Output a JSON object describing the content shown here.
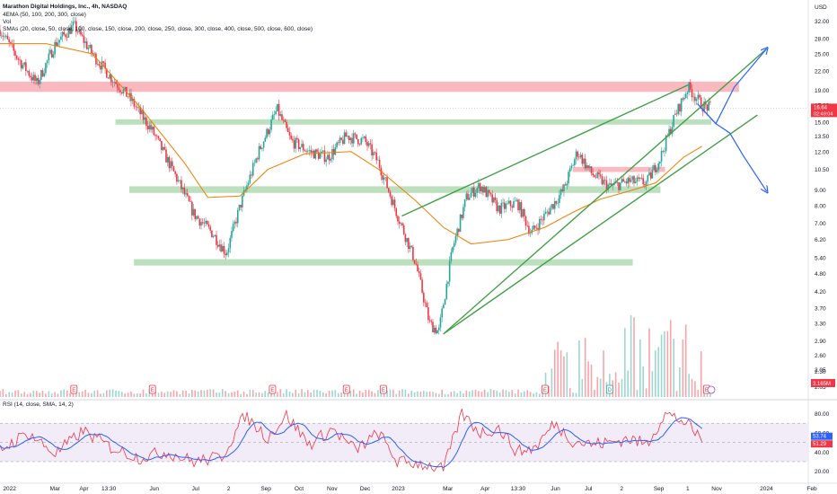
{
  "legend": {
    "title": "Marathon Digital Holdings, Inc., 4h, NASDAQ",
    "ema": "4EMA (50, 100, 200, 300, close)",
    "vol": "Vol",
    "smas": "SMAs (20, close, 50, close, 100, close, 150, close, 200, close, 250, close, 300, close, 400, close, 500, close, 600, close)",
    "rsi": "RSI (14, close, SMA, 14, 2)"
  },
  "currency": "USD",
  "price_badge": {
    "price": "16.64",
    "countdown": "02:49:04",
    "color": "#f23645"
  },
  "volume_badge": {
    "value": "3.165M",
    "color": "#f23645"
  },
  "rsi_badges": [
    {
      "value": "53.74",
      "color": "#2962ff"
    },
    {
      "value": "51.29",
      "color": "#f23645"
    }
  ],
  "colors": {
    "up": "#26a69a",
    "down": "#f23645",
    "ma": "#f57c00",
    "support": "#a5d6a7",
    "resistance": "#f8a1a8",
    "trend": "#43a047",
    "projection": "#2962ff",
    "rsi": "#f23645",
    "rsi_ma": "#2962ff",
    "rsi_band": "#ede7f6"
  },
  "chart_data": [
    {
      "type": "candlestick",
      "title": "Marathon Digital Holdings, Inc., 4h, NASDAQ",
      "x_axis_labels": [
        "2022",
        "Mar",
        "Apr",
        "13:30",
        "Jun",
        "Jul",
        "2",
        "Sep",
        "Oct",
        "Nov",
        "Dec",
        "2023",
        "Mar",
        "Apr",
        "13:30",
        "Jun",
        "Jul",
        "2",
        "Sep",
        "1",
        "Nov",
        "2024",
        "Feb"
      ],
      "y_axis_labels": [
        "32.00",
        "28.00",
        "25.00",
        "22.00",
        "19.00",
        "17.00",
        "15.00",
        "13.50",
        "12.00",
        "10.50",
        "9.00",
        "8.00",
        "7.00",
        "6.20",
        "5.40",
        "4.80",
        "4.20",
        "3.70",
        "3.30",
        "2.90",
        "2.60",
        "2.30",
        "2.05"
      ],
      "y_scale": "log",
      "ylim": [
        1.9,
        36
      ],
      "approx_price_path": [
        [
          0,
          30
        ],
        [
          4,
          24
        ],
        [
          8,
          20
        ],
        [
          12,
          27
        ],
        [
          16,
          31
        ],
        [
          20,
          25
        ],
        [
          24,
          21
        ],
        [
          28,
          18
        ],
        [
          33,
          14
        ],
        [
          38,
          10
        ],
        [
          42,
          7.5
        ],
        [
          46,
          6.5
        ],
        [
          49,
          5.6
        ],
        [
          52,
          8
        ],
        [
          56,
          12
        ],
        [
          60,
          16.5
        ],
        [
          63,
          13
        ],
        [
          67,
          12
        ],
        [
          71,
          11.5
        ],
        [
          75,
          13.5
        ],
        [
          79,
          13
        ],
        [
          82,
          11
        ],
        [
          86,
          7.5
        ],
        [
          90,
          5.2
        ],
        [
          93,
          3.3
        ],
        [
          95,
          3.1
        ],
        [
          98,
          5.8
        ],
        [
          101,
          8.5
        ],
        [
          104,
          9.3
        ],
        [
          108,
          7.8
        ],
        [
          112,
          8.2
        ],
        [
          115,
          6.5
        ],
        [
          119,
          7.8
        ],
        [
          122,
          9.0
        ],
        [
          125,
          12.0
        ],
        [
          128,
          10.2
        ],
        [
          132,
          9.2
        ],
        [
          136,
          9.6
        ],
        [
          140,
          9.5
        ],
        [
          143,
          11.5
        ],
        [
          146,
          15.5
        ],
        [
          149,
          19.5
        ],
        [
          152,
          17.0
        ],
        [
          154,
          16.64
        ]
      ],
      "moving_average": [
        [
          0,
          27
        ],
        [
          10,
          27
        ],
        [
          20,
          25
        ],
        [
          30,
          17
        ],
        [
          40,
          11
        ],
        [
          45,
          8.5
        ],
        [
          52,
          8.6
        ],
        [
          58,
          10.5
        ],
        [
          66,
          11.8
        ],
        [
          76,
          12.0
        ],
        [
          82,
          10.5
        ],
        [
          90,
          8.3
        ],
        [
          96,
          6.8
        ],
        [
          102,
          6.0
        ],
        [
          110,
          6.2
        ],
        [
          118,
          6.8
        ],
        [
          124,
          7.6
        ],
        [
          130,
          8.4
        ],
        [
          136,
          8.9
        ],
        [
          142,
          9.5
        ],
        [
          148,
          11.5
        ],
        [
          152,
          12.5
        ]
      ],
      "support_zones": [
        {
          "y": [
            14.7,
            15.3
          ],
          "x": [
            25,
            154
          ]
        },
        {
          "y": [
            8.8,
            9.25
          ],
          "x": [
            28,
            143
          ]
        },
        {
          "y": [
            5.1,
            5.35
          ],
          "x": [
            29,
            137
          ]
        }
      ],
      "resistance_zones": [
        {
          "y": [
            18.8,
            20.3
          ],
          "x": [
            0,
            160
          ]
        },
        {
          "y": [
            10.3,
            10.7
          ],
          "x": [
            124,
            144
          ]
        }
      ],
      "trendlines": [
        [
          [
            96,
            3.05
          ],
          [
            166,
            26
          ]
        ],
        [
          [
            96,
            3.05
          ],
          [
            164,
            15.8
          ]
        ],
        [
          [
            87,
            7.4
          ],
          [
            149,
            19.8
          ]
        ]
      ],
      "projection_path": [
        [
          151,
          17.2
        ],
        [
          155,
          14.8
        ],
        [
          159,
          19.5
        ],
        [
          166,
          26
        ]
      ],
      "projection_path_2": [
        [
          151,
          17.2
        ],
        [
          155,
          14.8
        ],
        [
          158,
          13.8
        ],
        [
          161,
          11.6
        ],
        [
          166,
          8.9
        ]
      ]
    },
    {
      "type": "bar",
      "title": "Vol",
      "y_axis_labels": [
        "2.05"
      ],
      "value_badge": "3.165M",
      "event_markers": [
        "E",
        "E",
        "E",
        "E",
        "E",
        "E",
        "D",
        "E"
      ]
    },
    {
      "type": "line",
      "title": "RSI (14, close, SMA, 14, 2)",
      "y_axis_labels": [
        "80.00",
        "60.00",
        "40.00",
        "20.00"
      ],
      "ylim": [
        15,
        88
      ],
      "bands": [
        30,
        70
      ],
      "approx_rsi_path": [
        [
          0,
          42
        ],
        [
          6,
          60
        ],
        [
          12,
          38
        ],
        [
          18,
          62
        ],
        [
          24,
          45
        ],
        [
          30,
          34
        ],
        [
          36,
          40
        ],
        [
          42,
          30
        ],
        [
          48,
          35
        ],
        [
          53,
          78
        ],
        [
          58,
          55
        ],
        [
          62,
          78
        ],
        [
          67,
          48
        ],
        [
          72,
          64
        ],
        [
          77,
          42
        ],
        [
          82,
          60
        ],
        [
          86,
          30
        ],
        [
          91,
          28
        ],
        [
          96,
          22
        ],
        [
          100,
          80
        ],
        [
          104,
          60
        ],
        [
          108,
          65
        ],
        [
          112,
          40
        ],
        [
          116,
          45
        ],
        [
          120,
          70
        ],
        [
          124,
          52
        ],
        [
          128,
          48
        ],
        [
          132,
          50
        ],
        [
          136,
          54
        ],
        [
          140,
          48
        ],
        [
          144,
          80
        ],
        [
          148,
          72
        ],
        [
          152,
          53
        ]
      ]
    }
  ]
}
